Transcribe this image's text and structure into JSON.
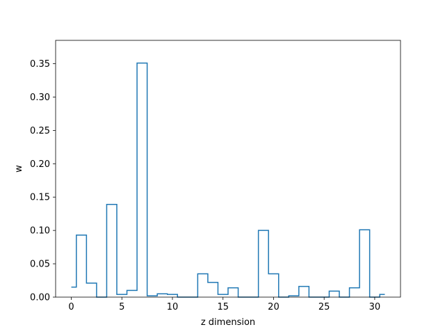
{
  "chart_data": {
    "type": "line",
    "style": "steps-mid",
    "title": "",
    "xlabel": "z dimension",
    "ylabel": "w",
    "xlim": [
      -1.55,
      32.55
    ],
    "ylim": [
      0,
      0.385
    ],
    "grid": false,
    "color": "#1f77b4",
    "x": [
      0,
      1,
      2,
      3,
      4,
      5,
      6,
      7,
      8,
      9,
      10,
      11,
      12,
      13,
      14,
      15,
      16,
      17,
      18,
      19,
      20,
      21,
      22,
      23,
      24,
      25,
      26,
      27,
      28,
      29,
      30,
      31
    ],
    "y": [
      0.015,
      0.093,
      0.021,
      0.0,
      0.139,
      0.004,
      0.01,
      0.351,
      0.002,
      0.005,
      0.004,
      0.0,
      0.0,
      0.035,
      0.022,
      0.004,
      0.014,
      0.0,
      0.0,
      0.1,
      0.035,
      0.0,
      0.002,
      0.016,
      0.0,
      0.0,
      0.009,
      0.0,
      0.014,
      0.101,
      0.0,
      0.004
    ],
    "xticks": [
      0,
      5,
      10,
      15,
      20,
      25,
      30
    ],
    "xtick_labels": [
      "0",
      "5",
      "10",
      "15",
      "20",
      "25",
      "30"
    ],
    "yticks": [
      0.0,
      0.05,
      0.1,
      0.15,
      0.2,
      0.25,
      0.3,
      0.35
    ],
    "ytick_labels": [
      "0.00",
      "0.05",
      "0.10",
      "0.15",
      "0.20",
      "0.25",
      "0.30",
      "0.35"
    ]
  }
}
